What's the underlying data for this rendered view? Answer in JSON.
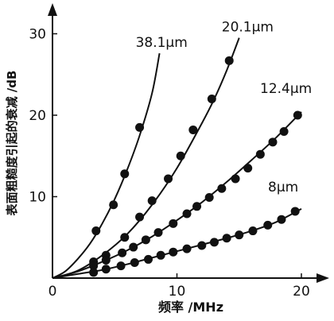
{
  "chart_data": {
    "type": "scatter",
    "xlabel": "频率 /MHz",
    "ylabel": "表面粗糙度引起的衰减 /dB",
    "xlim": [
      0,
      21
    ],
    "ylim": [
      0,
      32
    ],
    "x_ticks": [
      {
        "value": 0,
        "label": "0"
      },
      {
        "value": 10,
        "label": "10"
      },
      {
        "value": 20,
        "label": "20"
      }
    ],
    "y_ticks": [
      {
        "value": 10,
        "label": "10"
      },
      {
        "value": 20,
        "label": "20"
      },
      {
        "value": 30,
        "label": "30"
      }
    ],
    "series": [
      {
        "name": "38.1μm",
        "points": [
          [
            3.5,
            5.8
          ],
          [
            4.9,
            9.0
          ],
          [
            5.8,
            12.8
          ],
          [
            7.0,
            18.5
          ]
        ],
        "curve": [
          [
            0,
            0
          ],
          [
            1,
            0.8
          ],
          [
            2,
            2.3
          ],
          [
            3,
            4.2
          ],
          [
            4,
            6.7
          ],
          [
            5,
            9.7
          ],
          [
            6,
            13.3
          ],
          [
            7,
            17.5
          ],
          [
            8,
            22.7
          ],
          [
            8.6,
            27.6
          ]
        ]
      },
      {
        "name": "20.1μm",
        "points": [
          [
            3.3,
            2.0
          ],
          [
            4.3,
            2.8
          ],
          [
            5.8,
            5.0
          ],
          [
            7.0,
            7.5
          ],
          [
            8.0,
            9.5
          ],
          [
            9.3,
            12.2
          ],
          [
            10.3,
            15.0
          ],
          [
            11.3,
            18.2
          ],
          [
            12.8,
            22.0
          ],
          [
            14.2,
            26.7
          ]
        ],
        "curve": [
          [
            0,
            0
          ],
          [
            2,
            0.9
          ],
          [
            4,
            2.8
          ],
          [
            6,
            5.4
          ],
          [
            8,
            9.0
          ],
          [
            10,
            13.5
          ],
          [
            12,
            19.0
          ],
          [
            13,
            22.0
          ],
          [
            14,
            25.5
          ],
          [
            15,
            29.5
          ]
        ]
      },
      {
        "name": "12.4μm",
        "points": [
          [
            3.3,
            1.5
          ],
          [
            4.3,
            2.2
          ],
          [
            5.6,
            3.1
          ],
          [
            6.5,
            3.8
          ],
          [
            7.5,
            4.7
          ],
          [
            8.5,
            5.6
          ],
          [
            9.7,
            6.7
          ],
          [
            10.8,
            7.9
          ],
          [
            11.6,
            8.8
          ],
          [
            12.6,
            9.9
          ],
          [
            13.6,
            11.0
          ],
          [
            14.7,
            12.2
          ],
          [
            15.7,
            13.5
          ],
          [
            16.7,
            15.2
          ],
          [
            17.7,
            16.7
          ],
          [
            18.6,
            18.0
          ],
          [
            19.7,
            20.0
          ]
        ],
        "curve": [
          [
            0,
            0
          ],
          [
            2,
            0.8
          ],
          [
            4,
            2.0
          ],
          [
            6,
            3.4
          ],
          [
            8,
            5.1
          ],
          [
            10,
            7.1
          ],
          [
            12,
            9.3
          ],
          [
            14,
            11.8
          ],
          [
            16,
            14.5
          ],
          [
            18,
            17.3
          ],
          [
            20,
            20.4
          ]
        ]
      },
      {
        "name": "8μm",
        "points": [
          [
            3.3,
            0.7
          ],
          [
            4.3,
            1.1
          ],
          [
            5.5,
            1.5
          ],
          [
            6.6,
            1.9
          ],
          [
            7.7,
            2.3
          ],
          [
            8.7,
            2.8
          ],
          [
            9.7,
            3.2
          ],
          [
            10.8,
            3.6
          ],
          [
            12.0,
            4.0
          ],
          [
            13.0,
            4.4
          ],
          [
            14.0,
            4.9
          ],
          [
            15.0,
            5.3
          ],
          [
            16.1,
            5.8
          ],
          [
            17.3,
            6.5
          ],
          [
            18.4,
            7.2
          ],
          [
            19.5,
            8.2
          ]
        ],
        "curve": [
          [
            0,
            0
          ],
          [
            2,
            0.5
          ],
          [
            4,
            1.0
          ],
          [
            6,
            1.7
          ],
          [
            8,
            2.5
          ],
          [
            10,
            3.3
          ],
          [
            12,
            4.1
          ],
          [
            14,
            4.9
          ],
          [
            16,
            5.8
          ],
          [
            18,
            6.9
          ],
          [
            20,
            8.5
          ]
        ]
      }
    ]
  }
}
